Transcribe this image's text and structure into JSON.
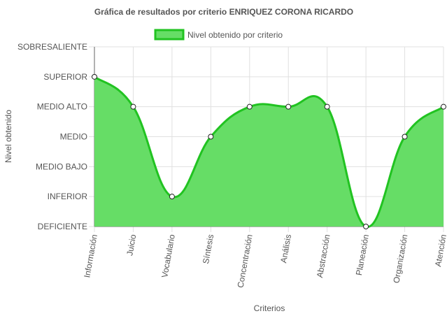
{
  "chart_data": {
    "type": "area",
    "title": "Gráfica de resultados por criterio ENRIQUEZ CORONA RICARDO",
    "xlabel": "Criterios",
    "ylabel": "Nivel obtenido",
    "y_levels": [
      "DEFICIENTE",
      "INFERIOR",
      "MEDIO BAJO",
      "MEDIO",
      "MEDIO ALTO",
      "SUPERIOR",
      "SOBRESALIENTE"
    ],
    "ylim": [
      0,
      6
    ],
    "categories": [
      "Información",
      "Juicio",
      "Vocabulario",
      "Síntesis",
      "Concentración",
      "Análisis",
      "Abstracción",
      "Planeación",
      "Organización",
      "Atención"
    ],
    "series": [
      {
        "name": "Nivel obtenido por criterio",
        "values": [
          5,
          4,
          1,
          3,
          4,
          4,
          4,
          0,
          3,
          4
        ]
      }
    ],
    "legend_position": "top",
    "grid": true,
    "colors": {
      "line": "#21c321",
      "fill": "#66dd66",
      "point_fill": "#ffffff",
      "grid": "#e0e0e0",
      "axis": "#666666"
    }
  }
}
